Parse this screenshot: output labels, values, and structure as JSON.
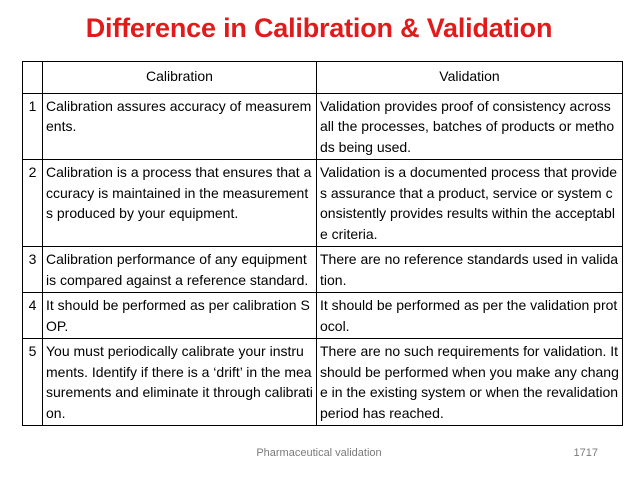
{
  "slide": {
    "title": "Difference in Calibration & Validation",
    "footer_label": "Pharmaceutical validation",
    "page_number": "1717"
  },
  "table": {
    "headers": [
      "",
      "Calibration",
      "Validation"
    ],
    "rows": [
      {
        "num": "1",
        "calibration": "Calibration assures accuracy of measurements.",
        "validation": "Validation provides proof of consistency across all the processes, batches of products or methods being used."
      },
      {
        "num": "2",
        "calibration": "Calibration is a process that ensures that accuracy is maintained in the measurements produced by your equipment.",
        "validation": "Validation is a documented process that provides assurance that a product, service or system consistently provides results within the acceptable criteria."
      },
      {
        "num": "3",
        "calibration": "Calibration performance of any equipment is compared against a reference standard.",
        "validation": "There are no reference standards used in validation."
      },
      {
        "num": "4",
        "calibration": "It should be performed as per calibration SOP.",
        "validation": "It should be performed as per the validation protocol."
      },
      {
        "num": "5",
        "calibration": "You must periodically calibrate your instruments. Identify if there is a ‘drift’ in the measurements and eliminate it through calibration.",
        "validation": "There are no such requirements for validation. It should be performed when you make any change in the existing system or when the revalidation period has reached."
      }
    ]
  }
}
